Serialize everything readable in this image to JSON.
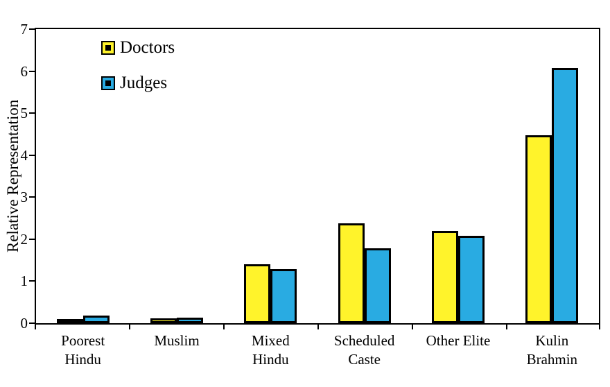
{
  "chart_data": {
    "type": "bar",
    "title": "",
    "xlabel": "",
    "ylabel": "Relative Representation",
    "ylim": [
      0,
      7
    ],
    "yticks": [
      0,
      1,
      2,
      3,
      4,
      5,
      6,
      7
    ],
    "grid": false,
    "legend_position": "top-left-inside",
    "categories": [
      "Poorest\nHindu",
      "Muslim",
      "Mixed\nHindu",
      "Scheduled\nCaste",
      "Other Elite",
      "Kulin\nBrahmin"
    ],
    "series": [
      {
        "name": "Doctors",
        "color": "#FFF d",
        "values": [
          0.08,
          0.12,
          1.4,
          2.37,
          2.2,
          4.47
        ]
      },
      {
        "name": "Judges",
        "color": "#29ABE2",
        "values": [
          0.18,
          0.13,
          1.28,
          1.78,
          2.08,
          6.07
        ]
      }
    ],
    "colors": {
      "doctors": "#FFF32B",
      "judges": "#29ABE2",
      "outline": "#000000"
    }
  }
}
